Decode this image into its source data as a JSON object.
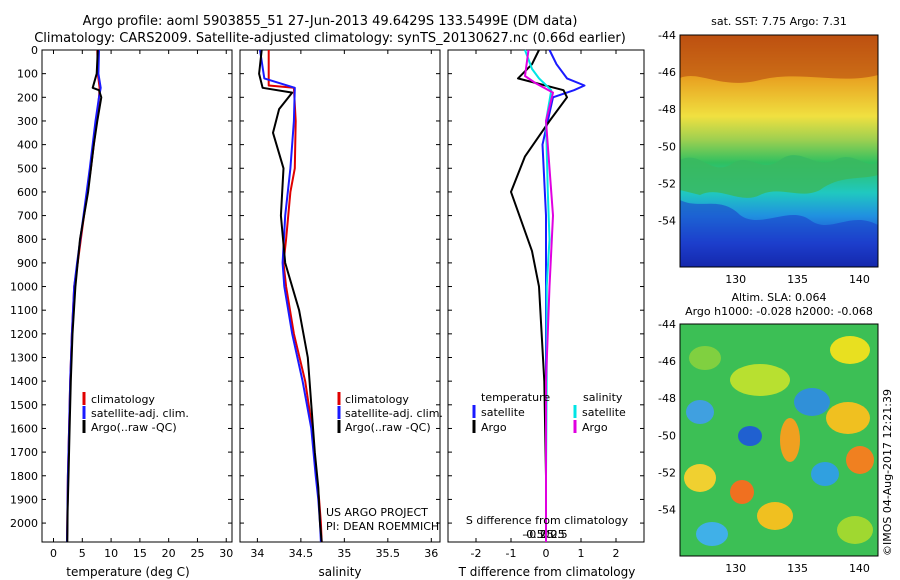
{
  "header": {
    "line1": "Argo profile: aoml 5903855_51 27-Jun-2013 49.6429S 133.5499E (DM data)",
    "line2": "Climatology: CARS2009. Satellite-adjusted climatology: synTS_20130627.nc (0.66d earlier)"
  },
  "colors": {
    "climatology": "#e00000",
    "satellite": "#1a1aff",
    "argo": "#000000",
    "sat_salinity": "#00e5e5",
    "argo_salinity": "#e000e0"
  },
  "credit": {
    "project": "US ARGO PROJECT",
    "pi": "PI: DEAN ROEMMICH"
  },
  "stamp": "©IMOS 04-Aug-2017 12:21:39",
  "chart_data": [
    {
      "id": "temperature",
      "type": "line",
      "xlabel": "temperature (deg C)",
      "ylabel": "",
      "xlim": [
        -2,
        31
      ],
      "ylim": [
        2080,
        0
      ],
      "xticks": [
        0,
        5,
        10,
        15,
        20,
        25,
        30
      ],
      "yticks": [
        0,
        100,
        200,
        300,
        400,
        500,
        600,
        700,
        800,
        900,
        1000,
        1100,
        1200,
        1300,
        1400,
        1500,
        1600,
        1700,
        1800,
        1900,
        2000
      ],
      "legend": [
        "climatology",
        "satellite-adj. clim.",
        "Argo(..raw -QC)"
      ],
      "series": [
        {
          "name": "climatology",
          "color_key": "climatology",
          "x": [
            7.6,
            7.7,
            8.0,
            7.9,
            7.5,
            6.5,
            5.3,
            4.2,
            3.6,
            3.2,
            2.9,
            2.7,
            2.5,
            2.45,
            2.4,
            2.35
          ],
          "y": [
            0,
            100,
            160,
            200,
            300,
            500,
            700,
            900,
            1000,
            1200,
            1400,
            1600,
            1800,
            1900,
            2000,
            2080
          ]
        },
        {
          "name": "satellite",
          "color_key": "satellite",
          "x": [
            7.9,
            7.8,
            8.2,
            7.9,
            7.3,
            6.3,
            5.2,
            4.1,
            3.6,
            3.2,
            2.9,
            2.7,
            2.5,
            2.45,
            2.4,
            2.35
          ],
          "y": [
            0,
            100,
            160,
            200,
            300,
            500,
            700,
            900,
            1000,
            1200,
            1400,
            1600,
            1800,
            1900,
            2000,
            2080
          ]
        },
        {
          "name": "argo",
          "color_key": "argo",
          "x": [
            7.7,
            7.5,
            6.8,
            7.9,
            8.3,
            7.6,
            7.0,
            6.0,
            4.6,
            3.8,
            3.3,
            3.0,
            2.8,
            2.6,
            2.45,
            2.4
          ],
          "y": [
            0,
            100,
            160,
            170,
            200,
            300,
            400,
            600,
            800,
            1000,
            1200,
            1400,
            1600,
            1800,
            1950,
            2080
          ]
        }
      ]
    },
    {
      "id": "salinity",
      "type": "line",
      "xlabel": "salinity",
      "ylabel": "",
      "xlim": [
        33.8,
        36.1
      ],
      "ylim": [
        2080,
        0
      ],
      "xticks": [
        34,
        34.5,
        35,
        35.5,
        36
      ],
      "xticklabels": [
        "34",
        "34.5",
        "35",
        "35.5",
        "36"
      ],
      "legend": [
        "climatology",
        "satellite-adj. clim.",
        "Argo(..raw -QC)"
      ],
      "series": [
        {
          "name": "climatology",
          "color_key": "climatology",
          "x": [
            34.13,
            34.13,
            34.42,
            34.44,
            34.43,
            34.38,
            34.33,
            34.3,
            34.33,
            34.42,
            34.55,
            34.63,
            34.68,
            34.71,
            34.73,
            34.74
          ],
          "y": [
            0,
            150,
            160,
            300,
            500,
            600,
            800,
            900,
            1000,
            1200,
            1400,
            1600,
            1800,
            1900,
            2000,
            2080
          ]
        },
        {
          "name": "satellite",
          "color_key": "satellite",
          "x": [
            34.03,
            34.08,
            34.43,
            34.42,
            34.38,
            34.32,
            34.29,
            34.31,
            34.4,
            34.52,
            34.62,
            34.67,
            34.7,
            34.72,
            34.73
          ],
          "y": [
            0,
            120,
            160,
            300,
            500,
            700,
            900,
            1000,
            1200,
            1400,
            1600,
            1800,
            1900,
            2000,
            2080
          ]
        },
        {
          "name": "argo",
          "color_key": "argo",
          "x": [
            34.05,
            34.02,
            34.06,
            34.4,
            34.25,
            34.18,
            34.3,
            34.27,
            34.32,
            34.48,
            34.58,
            34.62,
            34.66,
            34.7,
            34.72,
            34.74
          ],
          "y": [
            0,
            100,
            160,
            180,
            250,
            350,
            500,
            700,
            900,
            1100,
            1300,
            1500,
            1700,
            1850,
            2000,
            2080
          ]
        }
      ]
    },
    {
      "id": "difference",
      "type": "line",
      "xlabel": "T difference from climatology",
      "xlabel2": "S difference from climatology",
      "xlim": [
        -2.8,
        2.8
      ],
      "ylim": [
        2080,
        0
      ],
      "xticks": [
        -2,
        -1,
        0,
        1,
        2
      ],
      "xticklabels": [
        "-2",
        "-1",
        "0",
        "1",
        "2"
      ],
      "sticks": [
        -0.5,
        -0.25,
        0,
        0.25,
        0.5
      ],
      "sticklabels": [
        "-0.5",
        "-0.25",
        "0",
        "0.25",
        "0.5"
      ],
      "legend_temperature_title": "temperature",
      "legend_salinity_title": "salinity",
      "legend_items": [
        "satellite",
        "Argo",
        "satellite",
        "Argo"
      ],
      "series": [
        {
          "name": "T satellite",
          "color_key": "satellite",
          "x": [
            0.1,
            0.3,
            0.6,
            1.1,
            0.8,
            0.2,
            -0.1,
            0.0,
            0.0,
            0.0,
            0.0,
            0.0,
            0.0
          ],
          "y": [
            0,
            60,
            120,
            150,
            170,
            200,
            400,
            700,
            900,
            1200,
            1500,
            1800,
            2080
          ]
        },
        {
          "name": "T argo",
          "color_key": "argo",
          "x": [
            -0.2,
            -0.4,
            -0.8,
            0.5,
            0.6,
            0.1,
            -0.6,
            -1.0,
            -0.4,
            -0.2,
            -0.05,
            0.0,
            0.0
          ],
          "y": [
            0,
            60,
            120,
            170,
            200,
            300,
            450,
            600,
            850,
            1000,
            1400,
            1800,
            2080
          ]
        },
        {
          "name": "S satellite",
          "color_key": "sat_salinity",
          "x": [
            -0.6,
            -0.4,
            -0.2,
            0.15,
            0.0,
            0.05,
            0.1,
            0.02,
            0.02,
            0.0,
            0.0
          ],
          "y": [
            0,
            80,
            120,
            170,
            300,
            600,
            800,
            1000,
            1400,
            1800,
            2080
          ]
        },
        {
          "name": "S argo",
          "color_key": "argo_salinity",
          "x": [
            -0.5,
            -0.6,
            -0.3,
            0.2,
            0.0,
            0.1,
            0.2,
            0.1,
            0.0,
            0.0,
            0.0
          ],
          "y": [
            0,
            110,
            140,
            180,
            300,
            500,
            700,
            1000,
            1400,
            1800,
            2080
          ]
        }
      ]
    },
    {
      "id": "sst_map",
      "type": "heatmap",
      "title": "sat. SST: 7.75 Argo: 7.31",
      "xlim": [
        125.5,
        141.5
      ],
      "ylim": [
        -56.5,
        -44
      ],
      "xticks": [
        130,
        135,
        140
      ],
      "yticks": [
        -44,
        -46,
        -48,
        -50,
        -52,
        -54
      ],
      "marker": {
        "lon": 133.55,
        "lat": -49.64
      }
    },
    {
      "id": "sla_map",
      "type": "heatmap",
      "title": "Altim. SLA: 0.064",
      "subtitle": "Argo h1000: -0.028 h2000: -0.068",
      "xlim": [
        125.5,
        141.5
      ],
      "ylim": [
        -56.5,
        -44
      ],
      "xticks": [
        130,
        135,
        140
      ],
      "yticks": [
        -44,
        -46,
        -48,
        -50,
        -52,
        -54
      ],
      "marker": {
        "lon": 133.55,
        "lat": -49.64
      }
    }
  ]
}
